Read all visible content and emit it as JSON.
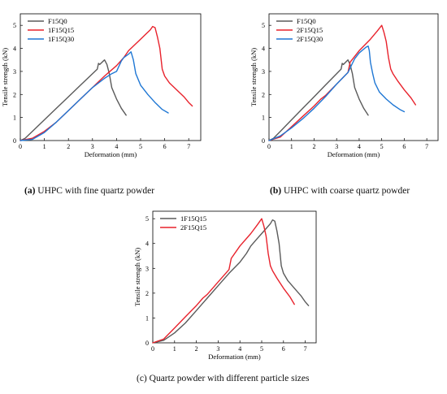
{
  "chart_data": [
    {
      "panel": "a",
      "type": "line",
      "caption_letter": "(a)",
      "caption": "UHPC with fine quartz powder",
      "xlabel": "Deformation (mm)",
      "ylabel": "Tensile strength (kN)",
      "xlim": [
        0,
        7.5
      ],
      "ylim": [
        0,
        5.5
      ],
      "x_ticks": [
        0,
        1,
        2,
        3,
        4,
        5,
        6,
        7
      ],
      "y_ticks": [
        0,
        1,
        2,
        3,
        4,
        5
      ],
      "grid": false,
      "legend": "top-left",
      "series": [
        {
          "name": "F15Q0",
          "color": "#5a5a5a",
          "x": [
            0,
            0.2,
            0.5,
            1.0,
            1.5,
            2.0,
            2.5,
            3.0,
            3.2,
            3.25,
            3.3,
            3.5,
            3.6,
            3.7,
            3.8,
            4.0,
            4.2,
            4.4
          ],
          "y": [
            0,
            0.1,
            0.4,
            0.9,
            1.4,
            1.9,
            2.4,
            2.9,
            3.1,
            3.35,
            3.3,
            3.5,
            3.3,
            2.9,
            2.3,
            1.8,
            1.4,
            1.1
          ]
        },
        {
          "name": "1F15Q15",
          "color": "#e8222c",
          "x": [
            0,
            0.5,
            1.0,
            1.5,
            2.0,
            2.5,
            3.0,
            3.5,
            4.0,
            4.3,
            4.5,
            4.8,
            5.0,
            5.2,
            5.4,
            5.5,
            5.6,
            5.7,
            5.8,
            5.9,
            6.0,
            6.2,
            6.5,
            6.8,
            7.0,
            7.15
          ],
          "y": [
            0,
            0.1,
            0.4,
            0.8,
            1.3,
            1.8,
            2.3,
            2.8,
            3.25,
            3.6,
            3.9,
            4.2,
            4.4,
            4.6,
            4.8,
            4.95,
            4.9,
            4.5,
            4.0,
            3.1,
            2.8,
            2.5,
            2.2,
            1.9,
            1.65,
            1.5
          ]
        },
        {
          "name": "1F15Q30",
          "color": "#1f77d4",
          "x": [
            0,
            0.5,
            1.0,
            1.5,
            2.0,
            2.5,
            3.0,
            3.5,
            3.8,
            4.0,
            4.2,
            4.3,
            4.5,
            4.6,
            4.7,
            4.8,
            5.0,
            5.3,
            5.6,
            5.9,
            6.15
          ],
          "y": [
            0,
            0.05,
            0.35,
            0.8,
            1.3,
            1.8,
            2.3,
            2.7,
            2.9,
            3.0,
            3.45,
            3.6,
            3.75,
            3.85,
            3.5,
            2.9,
            2.4,
            2.0,
            1.65,
            1.35,
            1.2
          ]
        }
      ]
    },
    {
      "panel": "b",
      "type": "line",
      "caption_letter": "(b)",
      "caption": "UHPC with coarse quartz powder",
      "xlabel": "Deformation (mm)",
      "ylabel": "Tensile strength (kN)",
      "xlim": [
        0,
        7.5
      ],
      "ylim": [
        0,
        5.5
      ],
      "x_ticks": [
        0,
        1,
        2,
        3,
        4,
        5,
        6,
        7
      ],
      "y_ticks": [
        0,
        1,
        2,
        3,
        4,
        5
      ],
      "grid": false,
      "legend": "top-left",
      "series": [
        {
          "name": "F15Q0",
          "color": "#5a5a5a",
          "x": [
            0,
            0.2,
            0.5,
            1.0,
            1.5,
            2.0,
            2.5,
            3.0,
            3.2,
            3.25,
            3.3,
            3.5,
            3.6,
            3.7,
            3.8,
            4.0,
            4.2,
            4.4
          ],
          "y": [
            0,
            0.1,
            0.4,
            0.9,
            1.4,
            1.9,
            2.4,
            2.9,
            3.1,
            3.35,
            3.3,
            3.5,
            3.3,
            2.9,
            2.3,
            1.8,
            1.4,
            1.1
          ]
        },
        {
          "name": "2F15Q15",
          "color": "#e8222c",
          "x": [
            0,
            0.5,
            1.0,
            1.5,
            2.0,
            2.3,
            2.5,
            3.0,
            3.5,
            3.6,
            4.0,
            4.5,
            4.8,
            5.0,
            5.1,
            5.2,
            5.3,
            5.4,
            5.5,
            5.7,
            6.0,
            6.3,
            6.5
          ],
          "y": [
            0,
            0.15,
            0.6,
            1.05,
            1.5,
            1.8,
            1.95,
            2.45,
            2.95,
            3.4,
            3.9,
            4.4,
            4.75,
            5.0,
            4.7,
            4.3,
            3.6,
            3.1,
            2.9,
            2.6,
            2.2,
            1.85,
            1.55
          ]
        },
        {
          "name": "2F15Q30",
          "color": "#1f77d4",
          "x": [
            0,
            0.5,
            1.0,
            1.5,
            2.0,
            2.5,
            3.0,
            3.5,
            3.7,
            3.8,
            4.0,
            4.3,
            4.4,
            4.45,
            4.5,
            4.6,
            4.7,
            4.9,
            5.2,
            5.5,
            5.8,
            6.0
          ],
          "y": [
            0,
            0.2,
            0.55,
            0.95,
            1.4,
            1.9,
            2.45,
            2.95,
            3.35,
            3.55,
            3.8,
            4.05,
            4.1,
            3.9,
            3.4,
            2.9,
            2.5,
            2.1,
            1.8,
            1.55,
            1.35,
            1.25
          ]
        }
      ]
    },
    {
      "panel": "c",
      "type": "line",
      "caption_letter": "(c)",
      "caption": "Quartz powder with different particle sizes",
      "xlabel": "Deformation (mm)",
      "ylabel": "Tensile strength (kN)",
      "xlim": [
        0,
        7.5
      ],
      "ylim": [
        0,
        5.3
      ],
      "x_ticks": [
        0,
        1,
        2,
        3,
        4,
        5,
        6,
        7
      ],
      "y_ticks": [
        0,
        1,
        2,
        3,
        4,
        5
      ],
      "grid": false,
      "legend": "top-left",
      "series": [
        {
          "name": "1F15Q15",
          "color": "#5a5a5a",
          "x": [
            0,
            0.5,
            1.0,
            1.5,
            2.0,
            2.5,
            3.0,
            3.5,
            4.0,
            4.3,
            4.5,
            4.8,
            5.0,
            5.2,
            5.4,
            5.5,
            5.6,
            5.7,
            5.8,
            5.9,
            6.0,
            6.2,
            6.5,
            6.8,
            7.0,
            7.15
          ],
          "y": [
            0,
            0.1,
            0.4,
            0.8,
            1.3,
            1.8,
            2.3,
            2.8,
            3.25,
            3.6,
            3.9,
            4.2,
            4.4,
            4.6,
            4.8,
            4.95,
            4.9,
            4.5,
            4.0,
            3.1,
            2.8,
            2.5,
            2.2,
            1.9,
            1.65,
            1.5
          ]
        },
        {
          "name": "2F15Q15",
          "color": "#e8222c",
          "x": [
            0,
            0.5,
            1.0,
            1.5,
            2.0,
            2.3,
            2.5,
            3.0,
            3.5,
            3.6,
            4.0,
            4.5,
            4.8,
            5.0,
            5.1,
            5.2,
            5.3,
            5.4,
            5.5,
            5.7,
            6.0,
            6.3,
            6.5
          ],
          "y": [
            0,
            0.15,
            0.6,
            1.05,
            1.5,
            1.8,
            1.95,
            2.45,
            2.95,
            3.4,
            3.9,
            4.4,
            4.75,
            5.0,
            4.7,
            4.3,
            3.6,
            3.1,
            2.9,
            2.6,
            2.2,
            1.85,
            1.55
          ]
        }
      ]
    }
  ]
}
